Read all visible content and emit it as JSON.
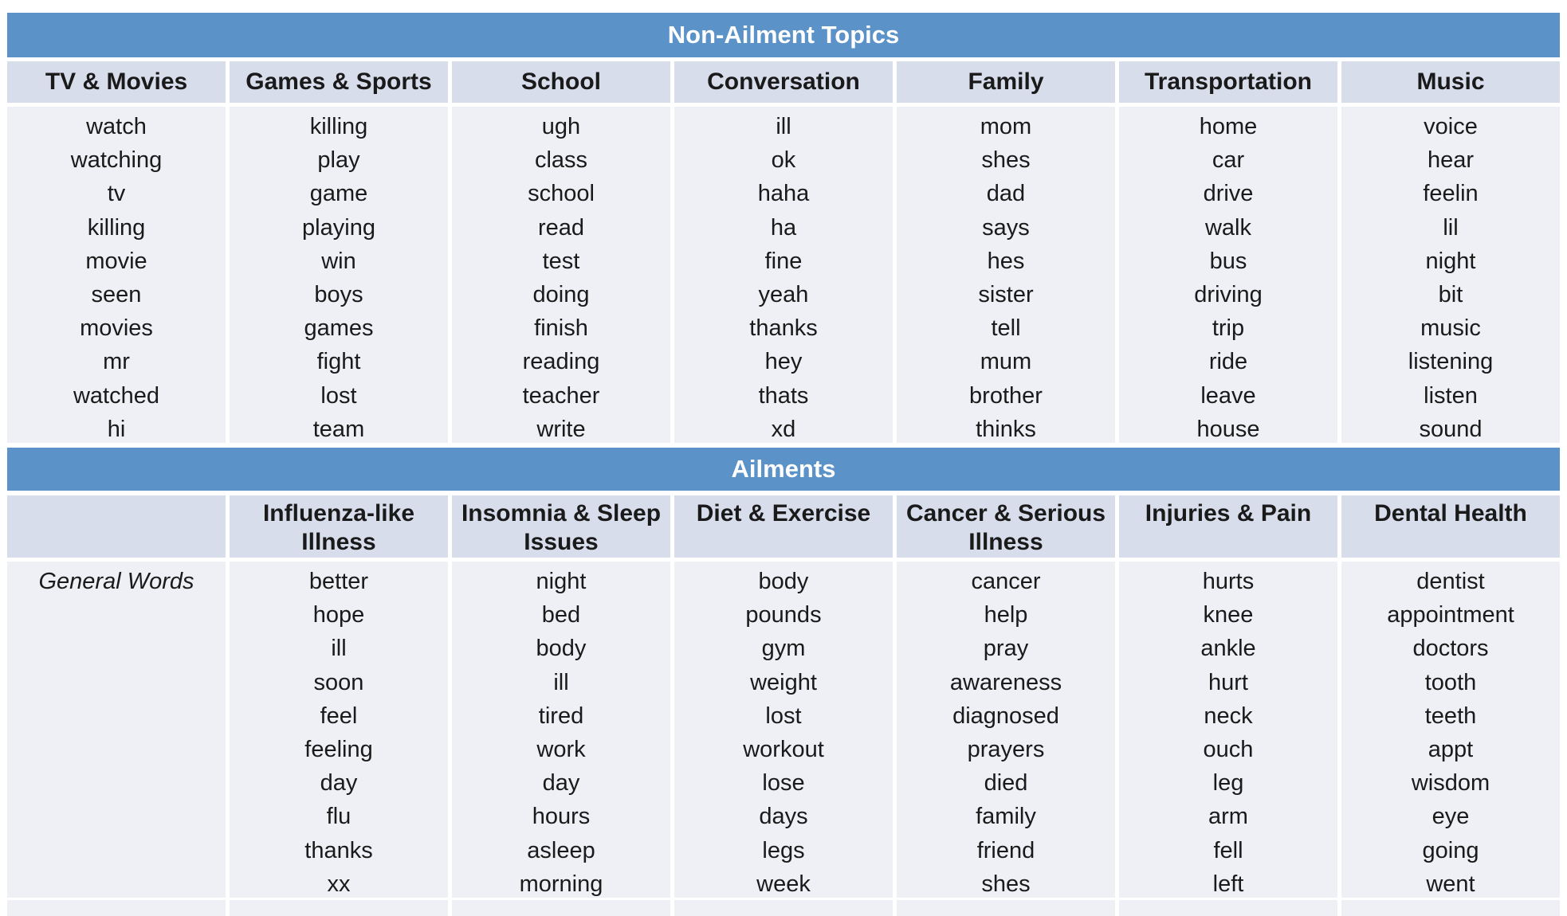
{
  "colors": {
    "banner_bg": "#5B92C8",
    "banner_text": "#FFFFFF",
    "header_bg": "#D8DDEC",
    "body_bg": "#EEF0F6",
    "text": "#1A1A1A"
  },
  "sections": [
    {
      "title": "Non-Ailment Topics",
      "columns": [
        {
          "header": "TV & Movies",
          "words": [
            "watch",
            "watching",
            "tv",
            "killing",
            "movie",
            "seen",
            "movies",
            "mr",
            "watched",
            "hi"
          ]
        },
        {
          "header": "Games & Sports",
          "words": [
            "killing",
            "play",
            "game",
            "playing",
            "win",
            "boys",
            "games",
            "fight",
            "lost",
            "team"
          ]
        },
        {
          "header": "School",
          "words": [
            "ugh",
            "class",
            "school",
            "read",
            "test",
            "doing",
            "finish",
            "reading",
            "teacher",
            "write"
          ]
        },
        {
          "header": "Conversation",
          "words": [
            "ill",
            "ok",
            "haha",
            "ha",
            "fine",
            "yeah",
            "thanks",
            "hey",
            "thats",
            "xd"
          ]
        },
        {
          "header": "Family",
          "words": [
            "mom",
            "shes",
            "dad",
            "says",
            "hes",
            "sister",
            "tell",
            "mum",
            "brother",
            "thinks"
          ]
        },
        {
          "header": "Transportation",
          "words": [
            "home",
            "car",
            "drive",
            "walk",
            "bus",
            "driving",
            "trip",
            "ride",
            "leave",
            "house"
          ]
        },
        {
          "header": "Music",
          "words": [
            "voice",
            "hear",
            "feelin",
            "lil",
            "night",
            "bit",
            "music",
            "listening",
            "listen",
            "sound"
          ]
        }
      ]
    },
    {
      "title": "Ailments",
      "columns": [
        {
          "header": "",
          "style": "label",
          "words": [
            "General Words"
          ]
        },
        {
          "header": "Influenza-like Illness",
          "words": [
            "better",
            "hope",
            "ill",
            "soon",
            "feel",
            "feeling",
            "day",
            "flu",
            "thanks",
            "xx"
          ]
        },
        {
          "header": "Insomnia & Sleep Issues",
          "words": [
            "night",
            "bed",
            "body",
            "ill",
            "tired",
            "work",
            "day",
            "hours",
            "asleep",
            "morning"
          ]
        },
        {
          "header": "Diet & Exercise",
          "words": [
            "body",
            "pounds",
            "gym",
            "weight",
            "lost",
            "workout",
            "lose",
            "days",
            "legs",
            "week"
          ]
        },
        {
          "header": "Cancer & Serious Illness",
          "words": [
            "cancer",
            "help",
            "pray",
            "awareness",
            "diagnosed",
            "prayers",
            "died",
            "family",
            "friend",
            "shes"
          ]
        },
        {
          "header": "Injuries & Pain",
          "words": [
            "hurts",
            "knee",
            "ankle",
            "hurt",
            "neck",
            "ouch",
            "leg",
            "arm",
            "fell",
            "left"
          ]
        },
        {
          "header": "Dental Health",
          "words": [
            "dentist",
            "appointment",
            "doctors",
            "tooth",
            "teeth",
            "appt",
            "wisdom",
            "eye",
            "going",
            "went"
          ]
        }
      ]
    }
  ]
}
